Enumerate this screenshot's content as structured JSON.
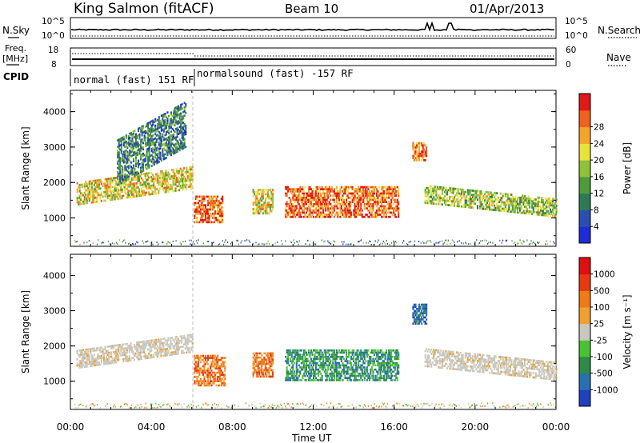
{
  "header": {
    "station": "King Salmon (fitACF)",
    "beam": "Beam 10",
    "date": "01/Apr/2013"
  },
  "strips": {
    "nsky": {
      "label": "N.Sky",
      "top": "10^5",
      "bottom": "10^0"
    },
    "nsearch": {
      "label": "N.Search",
      "top": "10^5",
      "bottom": "10^0"
    },
    "freq": {
      "label_line1": "Freq.",
      "label_line2": "[MHz]",
      "top": "18",
      "bottom": "8"
    },
    "nave": {
      "label": "Nave",
      "top": "60",
      "bottom": "0"
    },
    "cpid": {
      "label": "CPID",
      "segments": [
        "normal (fast) 151 RF",
        "normalsound (fast) -157 RF"
      ]
    }
  },
  "chart_data": [
    {
      "type": "heatmap",
      "panel": "power",
      "ylabel": "Slant Range [km]",
      "xlabel": "",
      "ylim": [
        200,
        4600
      ],
      "xlim_hours": [
        0,
        24
      ],
      "yticks": [
        1000,
        2000,
        3000,
        4000
      ],
      "colorbar": {
        "label": "Power [dB]",
        "ticks": [
          "4",
          "8",
          "12",
          "16",
          "20",
          "24",
          "28"
        ],
        "colors": [
          "#1f2bd6",
          "#2b4fb0",
          "#2f7a55",
          "#4f9a3b",
          "#8fc23a",
          "#e7e33a",
          "#f4a42b",
          "#f0601f",
          "#e01a16"
        ]
      },
      "regions": [
        {
          "name": "arc-early",
          "t_start": 0.3,
          "t_end": 6.0,
          "r_start": 1350,
          "r_end": 2000,
          "level": 5
        },
        {
          "name": "plume",
          "t_start": 2.3,
          "t_end": 5.7,
          "r_start": 2200,
          "r_end": 3500,
          "level": 2
        },
        {
          "name": "post-6",
          "t_start": 6.1,
          "t_end": 7.5,
          "r_start": 850,
          "r_end": 1600,
          "level": 7
        },
        {
          "name": "mid-8",
          "t_start": 9.0,
          "t_end": 10.0,
          "r_start": 1100,
          "r_end": 1800,
          "level": 5
        },
        {
          "name": "main-block",
          "t_start": 10.6,
          "t_end": 16.2,
          "r_start": 1000,
          "r_end": 1900,
          "level": 7
        },
        {
          "name": "blob-17",
          "t_start": 16.9,
          "t_end": 17.6,
          "r_start": 2600,
          "r_end": 3100,
          "level": 7
        },
        {
          "name": "tail",
          "t_start": 17.5,
          "t_end": 24.0,
          "r_start": 1400,
          "r_end": 1900,
          "level": 4
        }
      ]
    },
    {
      "type": "heatmap",
      "panel": "velocity",
      "ylabel": "Slant Range [km]",
      "xlabel": "Time UT",
      "ylim": [
        200,
        4600
      ],
      "xlim_hours": [
        0,
        24
      ],
      "yticks": [
        1000,
        2000,
        3000,
        4000
      ],
      "xticks": [
        "00:00",
        "04:00",
        "08:00",
        "12:00",
        "16:00",
        "20:00",
        "00:00"
      ],
      "colorbar": {
        "label": "Velocity [m s⁻¹]",
        "ticks": [
          "1000",
          "500",
          "100",
          "25",
          "-25",
          "-100",
          "-500",
          "-1000"
        ],
        "colors": [
          "#2040c0",
          "#2a6fb0",
          "#2f8a4a",
          "#49c236",
          "#c8c8bf",
          "#f0a030",
          "#f07a18",
          "#e83a12",
          "#e01010"
        ]
      },
      "regions": [
        {
          "name": "arc-early",
          "t_start": 0.3,
          "t_end": 6.0,
          "r_start": 1350,
          "r_end": 1850,
          "class": "ground"
        },
        {
          "name": "post-6",
          "t_start": 6.1,
          "t_end": 7.6,
          "r_start": 850,
          "r_end": 1700,
          "class": "away"
        },
        {
          "name": "mid-8",
          "t_start": 9.0,
          "t_end": 10.0,
          "r_start": 1100,
          "r_end": 1800,
          "class": "away"
        },
        {
          "name": "main-block",
          "t_start": 10.6,
          "t_end": 16.2,
          "r_start": 1000,
          "r_end": 1900,
          "class": "toward"
        },
        {
          "name": "blob-17",
          "t_start": 16.9,
          "t_end": 17.6,
          "r_start": 2600,
          "r_end": 3200,
          "class": "toward-fast"
        },
        {
          "name": "tail",
          "t_start": 17.5,
          "t_end": 24.0,
          "r_start": 1400,
          "r_end": 1900,
          "class": "ground"
        }
      ]
    }
  ]
}
